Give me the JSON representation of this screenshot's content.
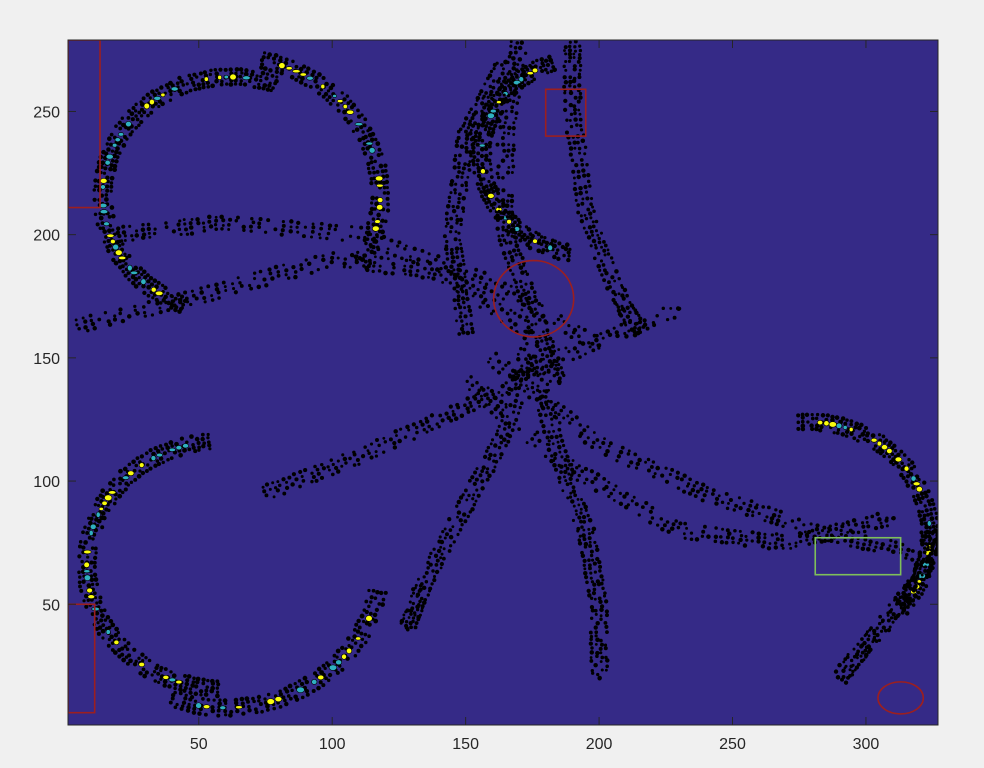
{
  "chart_data": {
    "type": "heatmap",
    "title": "",
    "xlabel": "",
    "ylabel": "",
    "xlim": [
      1,
      327
    ],
    "ylim": [
      1,
      279
    ],
    "xticks": [
      50,
      100,
      150,
      200,
      250,
      300
    ],
    "yticks": [
      50,
      100,
      150,
      200,
      250
    ],
    "grid": false,
    "colors": {
      "background": "#352a87",
      "contour": "#000000",
      "high": "#f9fb0e",
      "mid": "#2fb0c0",
      "axes": "#262626",
      "box_red": "#9c1f1f",
      "box_green": "#7fbf5a"
    },
    "features": {
      "rings": [
        {
          "name": "ring-top-left",
          "cx": 62,
          "cy": 216,
          "r": 48,
          "a0": 70,
          "a1": 250
        },
        {
          "name": "ring-top-left-outer",
          "cx": 62,
          "cy": 216,
          "r": 56,
          "a0": -30,
          "a1": 80
        },
        {
          "name": "ring-bottom-left",
          "cx": 58,
          "cy": 66,
          "r": 50,
          "a0": 95,
          "a1": 270
        },
        {
          "name": "ring-bottom-left-outer",
          "cx": 60,
          "cy": 66,
          "r": 58,
          "a0": 250,
          "a1": 350
        },
        {
          "name": "ring-right",
          "cx": 278,
          "cy": 78,
          "r": 46,
          "a0": -40,
          "a1": 95
        },
        {
          "name": "ring-top-center",
          "cx": 196,
          "cy": 232,
          "r": 40,
          "a0": 110,
          "a1": 260
        }
      ],
      "streaks": [
        {
          "name": "streak-top-left-to-center",
          "points": [
            [
              20,
              200
            ],
            [
              60,
              205
            ],
            [
              110,
              200
            ],
            [
              160,
              180
            ],
            [
              200,
              155
            ]
          ]
        },
        {
          "name": "streak-left-to-center",
          "points": [
            [
              2,
              162
            ],
            [
              50,
              175
            ],
            [
              100,
              190
            ],
            [
              140,
              185
            ],
            [
              175,
              160
            ]
          ]
        },
        {
          "name": "streak-bottom-left-to-center",
          "points": [
            [
              75,
              95
            ],
            [
              110,
              110
            ],
            [
              150,
              130
            ],
            [
              185,
              150
            ],
            [
              230,
              170
            ]
          ]
        },
        {
          "name": "streak-center-to-right",
          "points": [
            [
              150,
              140
            ],
            [
              190,
              105
            ],
            [
              230,
              80
            ],
            [
              270,
              75
            ],
            [
              310,
              85
            ]
          ]
        },
        {
          "name": "streak-center-down-right",
          "points": [
            [
              160,
              150
            ],
            [
              200,
              115
            ],
            [
              240,
              95
            ],
            [
              280,
              80
            ],
            [
              320,
              70
            ]
          ]
        },
        {
          "name": "streak-top-to-center",
          "points": [
            [
              170,
              278
            ],
            [
              165,
              240
            ],
            [
              165,
              200
            ],
            [
              175,
              170
            ],
            [
              185,
              140
            ]
          ]
        },
        {
          "name": "streak-center-to-bottom",
          "points": [
            [
              175,
              160
            ],
            [
              165,
              120
            ],
            [
              150,
              90
            ],
            [
              135,
              60
            ],
            [
              128,
              40
            ]
          ]
        },
        {
          "name": "streak-top-right-arc",
          "points": [
            [
              190,
              278
            ],
            [
              190,
              250
            ],
            [
              195,
              210
            ],
            [
              205,
              180
            ],
            [
              215,
              160
            ]
          ]
        },
        {
          "name": "streak-center-to-bottom-mid",
          "points": [
            [
              175,
              150
            ],
            [
              185,
              110
            ],
            [
              195,
              80
            ],
            [
              200,
              50
            ],
            [
              200,
              20
            ]
          ]
        },
        {
          "name": "streak-bottom-right",
          "points": [
            [
              290,
              20
            ],
            [
              305,
              40
            ],
            [
              320,
              60
            ],
            [
              326,
              80
            ]
          ]
        },
        {
          "name": "streak-top-center-left",
          "points": [
            [
              150,
              160
            ],
            [
              145,
              200
            ],
            [
              150,
              240
            ],
            [
              165,
              270
            ]
          ]
        }
      ]
    },
    "annotations": [
      {
        "name": "rect-left-top",
        "shape": "rect",
        "x0": 1,
        "x1": 13,
        "y0": 211,
        "y1": 279,
        "color": "box_red"
      },
      {
        "name": "rect-top-center",
        "shape": "rect",
        "x0": 180,
        "x1": 195,
        "y0": 240,
        "y1": 259,
        "color": "box_red"
      },
      {
        "name": "rect-left-bottom",
        "shape": "rect",
        "x0": 1,
        "x1": 11,
        "y0": 6,
        "y1": 50,
        "color": "box_red"
      },
      {
        "name": "rect-right",
        "shape": "rect",
        "x0": 281,
        "x1": 313,
        "y0": 62,
        "y1": 77,
        "color": "box_green"
      },
      {
        "name": "circle-center",
        "shape": "ellipse",
        "cx": 175.5,
        "cy": 174,
        "rx": 15,
        "ry": 15.5,
        "color": "box_red"
      },
      {
        "name": "circle-bottom-right",
        "shape": "ellipse",
        "cx": 313,
        "cy": 12,
        "rx": 8.5,
        "ry": 6.5,
        "color": "box_red"
      }
    ]
  }
}
